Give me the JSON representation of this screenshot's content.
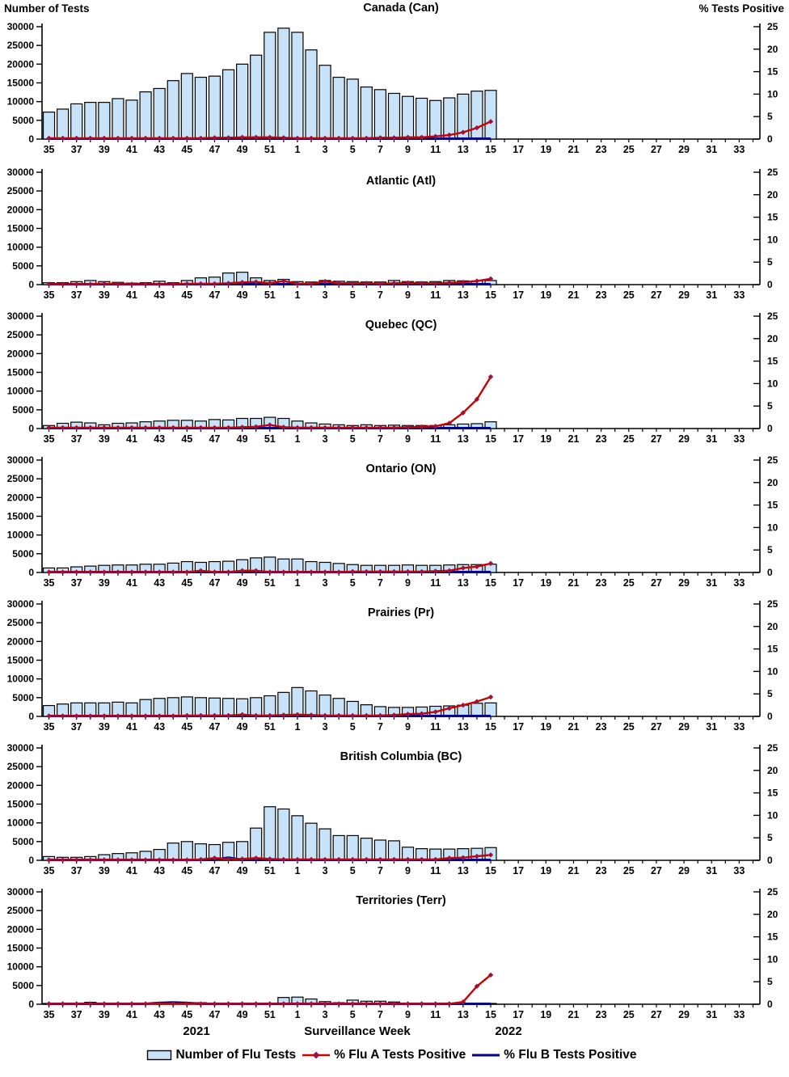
{
  "header": {
    "left_axis_title": "Number of Tests",
    "right_axis_title": "% Tests Positive"
  },
  "footer": {
    "year_left": "2021",
    "xaxis_title": "Surveillance Week",
    "year_right": "2022"
  },
  "legend": {
    "flu_tests": "Number of Flu Tests",
    "flu_a": "% Flu A Tests Positive",
    "flu_b": "% Flu B Tests Positive"
  },
  "colors": {
    "bar_fill": "#C8E3F7",
    "bar_stroke": "#000000",
    "flu_a_line": "#CC0000",
    "flu_a_marker": "#A21033",
    "flu_b_line": "#00008B",
    "axis": "#000000"
  },
  "chart_data": {
    "type": "bar",
    "subtype": "multi-panel combo bar + two lines, dual y-axis",
    "xlabel": "Surveillance Week",
    "ylabel_left": "Number of Tests",
    "ylabel_right": "% Tests Positive",
    "ylim_left": [
      0,
      30000
    ],
    "ylim_right": [
      0,
      25
    ],
    "y_left_ticks": [
      0,
      5000,
      10000,
      15000,
      20000,
      25000,
      30000
    ],
    "y_right_ticks": [
      0,
      5,
      10,
      15,
      20,
      25
    ],
    "categories_weeks": [
      35,
      36,
      37,
      38,
      39,
      40,
      41,
      42,
      43,
      44,
      45,
      46,
      47,
      48,
      49,
      50,
      51,
      52,
      1,
      2,
      3,
      4,
      5,
      6,
      7,
      8,
      9,
      10,
      11,
      12,
      13,
      14,
      15,
      16,
      17,
      18,
      19,
      20,
      21,
      22,
      23,
      24,
      25,
      26,
      27,
      28,
      29,
      30,
      31,
      32,
      33,
      34
    ],
    "x_tick_labels": [
      35,
      37,
      39,
      41,
      43,
      45,
      47,
      49,
      51,
      1,
      3,
      5,
      7,
      9,
      11,
      13,
      15,
      17,
      19,
      21,
      23,
      25,
      27,
      29,
      31,
      33
    ],
    "data_weeks": [
      35,
      36,
      37,
      38,
      39,
      40,
      41,
      42,
      43,
      44,
      45,
      46,
      47,
      48,
      49,
      50,
      51,
      52,
      1,
      2,
      3,
      4,
      5,
      6,
      7,
      8,
      9,
      10,
      11,
      12,
      13,
      14,
      15
    ],
    "panels": [
      {
        "title": "Canada (Can)",
        "tests": [
          7200,
          8000,
          9400,
          9800,
          9800,
          10800,
          10400,
          12600,
          13500,
          15600,
          17500,
          16500,
          16800,
          18500,
          20000,
          22400,
          28500,
          29600,
          28500,
          23800,
          19700,
          16500,
          16000,
          13900,
          13200,
          12200,
          11400,
          10900,
          10300,
          11000,
          12000,
          12800,
          13000
        ],
        "flu_a_pct": [
          0.2,
          0.2,
          0.2,
          0.2,
          0.2,
          0.2,
          0.2,
          0.2,
          0.2,
          0.2,
          0.2,
          0.2,
          0.3,
          0.3,
          0.4,
          0.4,
          0.4,
          0.3,
          0.2,
          0.2,
          0.2,
          0.2,
          0.2,
          0.2,
          0.3,
          0.3,
          0.4,
          0.4,
          0.6,
          0.9,
          1.5,
          2.5,
          3.9
        ],
        "flu_b_pct": [
          0.1,
          0.1,
          0.1,
          0.1,
          0.1,
          0.1,
          0.1,
          0.1,
          0.1,
          0.1,
          0.1,
          0.1,
          0.1,
          0.1,
          0.1,
          0.1,
          0.1,
          0.1,
          0.1,
          0.1,
          0.1,
          0.1,
          0.1,
          0.1,
          0.1,
          0.1,
          0.1,
          0.1,
          0.1,
          0.1,
          0.1,
          0.1,
          0.1
        ]
      },
      {
        "title": "Atlantic (Atl)",
        "tests": [
          500,
          500,
          800,
          1100,
          800,
          600,
          400,
          500,
          900,
          500,
          1100,
          1800,
          2000,
          3100,
          3300,
          1800,
          1100,
          1400,
          800,
          700,
          1100,
          900,
          800,
          700,
          700,
          1100,
          800,
          700,
          800,
          1100,
          1000,
          1000,
          1100
        ],
        "flu_a_pct": [
          0.1,
          0.1,
          0.1,
          0.1,
          0.2,
          0.1,
          0.1,
          0.1,
          0.1,
          0.1,
          0.2,
          0.2,
          0.2,
          0.3,
          0.5,
          0.6,
          0.3,
          0.8,
          0.2,
          0.2,
          0.7,
          0.3,
          0.3,
          0.3,
          0.2,
          0.3,
          0.4,
          0.3,
          0.3,
          0.4,
          0.5,
          0.8,
          1.3
        ],
        "flu_b_pct": [
          0.1,
          0.1,
          0.1,
          0.1,
          0.1,
          0.1,
          0.1,
          0.1,
          0.1,
          0.1,
          0.1,
          0.1,
          0.1,
          0.1,
          0.1,
          0.1,
          0.1,
          0.1,
          0.1,
          0.1,
          0.1,
          0.1,
          0.1,
          0.1,
          0.1,
          0.1,
          0.1,
          0.1,
          0.1,
          0.1,
          0.1,
          0.1,
          0.1
        ]
      },
      {
        "title": "Quebec (QC)",
        "tests": [
          800,
          1400,
          1700,
          1500,
          1000,
          1400,
          1500,
          1800,
          2000,
          2200,
          2200,
          2000,
          2400,
          2300,
          2700,
          2700,
          3000,
          2700,
          2000,
          1500,
          1200,
          1000,
          800,
          1000,
          800,
          900,
          800,
          800,
          800,
          1000,
          1200,
          1300,
          1800
        ],
        "flu_a_pct": [
          0.2,
          0.2,
          0.2,
          0.2,
          0.2,
          0.2,
          0.2,
          0.2,
          0.2,
          0.2,
          0.2,
          0.2,
          0.2,
          0.2,
          0.3,
          0.4,
          0.8,
          0.3,
          0.2,
          0.2,
          0.2,
          0.2,
          0.2,
          0.2,
          0.2,
          0.2,
          0.3,
          0.4,
          0.5,
          1.2,
          3.5,
          6.5,
          11.5
        ],
        "flu_b_pct": [
          0.1,
          0.1,
          0.1,
          0.1,
          0.1,
          0.1,
          0.1,
          0.1,
          0.1,
          0.1,
          0.1,
          0.1,
          0.1,
          0.1,
          0.1,
          0.1,
          0.1,
          0.1,
          0.1,
          0.1,
          0.1,
          0.1,
          0.1,
          0.1,
          0.1,
          0.1,
          0.1,
          0.1,
          0.1,
          0.1,
          0.1,
          0.1,
          0.1
        ]
      },
      {
        "title": "Ontario (ON)",
        "tests": [
          1200,
          1200,
          1500,
          1700,
          1900,
          2000,
          2000,
          2200,
          2200,
          2500,
          2900,
          2700,
          2900,
          3000,
          3400,
          3900,
          4100,
          3600,
          3600,
          2900,
          2700,
          2400,
          2100,
          1900,
          1900,
          1900,
          2000,
          1900,
          1900,
          2000,
          2100,
          2100,
          2200
        ],
        "flu_a_pct": [
          0.1,
          0.1,
          0.1,
          0.1,
          0.1,
          0.1,
          0.1,
          0.1,
          0.1,
          0.1,
          0.1,
          0.4,
          0.1,
          0.1,
          0.4,
          0.4,
          0.1,
          0.1,
          0.1,
          0.1,
          0.1,
          0.1,
          0.2,
          0.2,
          0.2,
          0.2,
          0.2,
          0.2,
          0.3,
          0.4,
          1.0,
          1.3,
          2.0
        ],
        "flu_b_pct": [
          0.1,
          0.1,
          0.1,
          0.1,
          0.1,
          0.1,
          0.1,
          0.1,
          0.1,
          0.1,
          0.1,
          0.1,
          0.1,
          0.1,
          0.1,
          0.1,
          0.1,
          0.1,
          0.1,
          0.1,
          0.1,
          0.1,
          0.1,
          0.1,
          0.1,
          0.1,
          0.1,
          0.1,
          0.1,
          0.1,
          0.1,
          0.1,
          0.1
        ]
      },
      {
        "title": "Prairies (Pr)",
        "tests": [
          2900,
          3300,
          3600,
          3600,
          3600,
          3800,
          3600,
          4500,
          4800,
          5000,
          5200,
          5000,
          4900,
          4800,
          4700,
          5000,
          5500,
          6400,
          7700,
          6800,
          5700,
          4800,
          4000,
          3100,
          2600,
          2400,
          2400,
          2500,
          2700,
          2800,
          3000,
          3500,
          3600
        ],
        "flu_a_pct": [
          0.1,
          0.1,
          0.1,
          0.1,
          0.1,
          0.1,
          0.1,
          0.1,
          0.1,
          0.1,
          0.2,
          0.2,
          0.2,
          0.2,
          0.4,
          0.2,
          0.2,
          0.3,
          0.4,
          0.3,
          0.2,
          0.2,
          0.2,
          0.2,
          0.2,
          0.3,
          0.5,
          0.6,
          1.0,
          1.8,
          2.5,
          3.3,
          4.3
        ],
        "flu_b_pct": [
          0.1,
          0.1,
          0.1,
          0.1,
          0.1,
          0.1,
          0.1,
          0.1,
          0.1,
          0.1,
          0.1,
          0.1,
          0.1,
          0.1,
          0.1,
          0.1,
          0.1,
          0.1,
          0.1,
          0.1,
          0.1,
          0.1,
          0.1,
          0.1,
          0.1,
          0.1,
          0.1,
          0.1,
          0.1,
          0.1,
          0.1,
          0.1,
          0.1
        ]
      },
      {
        "title": "British Columbia (BC)",
        "tests": [
          1000,
          800,
          800,
          1000,
          1500,
          1800,
          2000,
          2400,
          2900,
          4600,
          5000,
          4400,
          4200,
          4800,
          5000,
          8600,
          14300,
          13700,
          11900,
          9900,
          8400,
          6600,
          6600,
          5900,
          5400,
          5200,
          3500,
          3100,
          3000,
          3000,
          3100,
          3200,
          3400
        ],
        "flu_a_pct": [
          0.1,
          0.1,
          0.1,
          0.1,
          0.1,
          0.1,
          0.1,
          0.1,
          0.1,
          0.1,
          0.1,
          0.2,
          0.5,
          0.3,
          0.3,
          0.5,
          0.3,
          0.2,
          0.2,
          0.2,
          0.2,
          0.2,
          0.2,
          0.2,
          0.2,
          0.2,
          0.2,
          0.2,
          0.2,
          0.5,
          0.6,
          0.9,
          1.2
        ],
        "flu_b_pct": [
          0.1,
          0.1,
          0.1,
          0.1,
          0.1,
          0.1,
          0.1,
          0.1,
          0.1,
          0.1,
          0.1,
          0.1,
          0.1,
          0.6,
          0.1,
          0.1,
          0.1,
          0.1,
          0.1,
          0.1,
          0.1,
          0.1,
          0.1,
          0.1,
          0.1,
          0.1,
          0.1,
          0.1,
          0.1,
          0.1,
          0.1,
          0.1,
          0.1
        ]
      },
      {
        "title": "Territories (Terr)",
        "tests": [
          200,
          100,
          100,
          500,
          200,
          200,
          200,
          200,
          300,
          500,
          400,
          400,
          300,
          200,
          100,
          100,
          100,
          1800,
          1900,
          1400,
          700,
          400,
          1100,
          800,
          800,
          600,
          300,
          200,
          200,
          300,
          100,
          100,
          100
        ],
        "flu_a_pct": [
          0.1,
          0.1,
          0.1,
          0.1,
          0.1,
          0.1,
          0.1,
          0.1,
          0.1,
          0.1,
          0.1,
          0.1,
          0.1,
          0.1,
          0.1,
          0.1,
          0.1,
          0.1,
          0.1,
          0.1,
          0.1,
          0.1,
          0.1,
          0.1,
          0.1,
          0.1,
          0.1,
          0.1,
          0.1,
          0.1,
          0.5,
          4.0,
          6.5
        ],
        "flu_b_pct": [
          0.1,
          0.1,
          0.1,
          0.1,
          0.1,
          0.1,
          0.1,
          0.1,
          0.3,
          0.4,
          0.3,
          0.1,
          0.1,
          0.1,
          0.1,
          0.1,
          0.1,
          0.1,
          0.1,
          0.1,
          0.1,
          0.1,
          0.1,
          0.1,
          0.1,
          0.1,
          0.1,
          0.1,
          0.1,
          0.1,
          0.1,
          0.1,
          0.1
        ]
      }
    ]
  }
}
